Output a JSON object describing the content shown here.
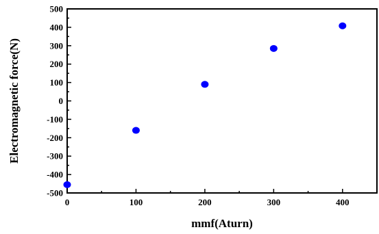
{
  "chart_data": {
    "type": "scatter",
    "title": "",
    "xlabel": "mmf(Aturn)",
    "ylabel": "Electromagnetic force(N)",
    "xlim": [
      0,
      450
    ],
    "ylim": [
      -500,
      500
    ],
    "x_ticks": [
      0,
      100,
      200,
      300,
      400
    ],
    "y_ticks": [
      500,
      400,
      300,
      200,
      100,
      0,
      -100,
      -200,
      -300,
      -400,
      -500
    ],
    "x_tick_labels": [
      "0",
      "100",
      "200",
      "300",
      "400"
    ],
    "y_tick_labels": [
      "500",
      "400",
      "300",
      "200",
      "100",
      "0",
      "-100",
      "-200",
      "-300",
      "-400",
      "-500"
    ],
    "grid": false,
    "marker_color": "#0000ff",
    "series": [
      {
        "x": [
          0,
          100,
          200,
          300,
          400
        ],
        "y": [
          -455,
          -160,
          90,
          285,
          408
        ]
      }
    ]
  }
}
